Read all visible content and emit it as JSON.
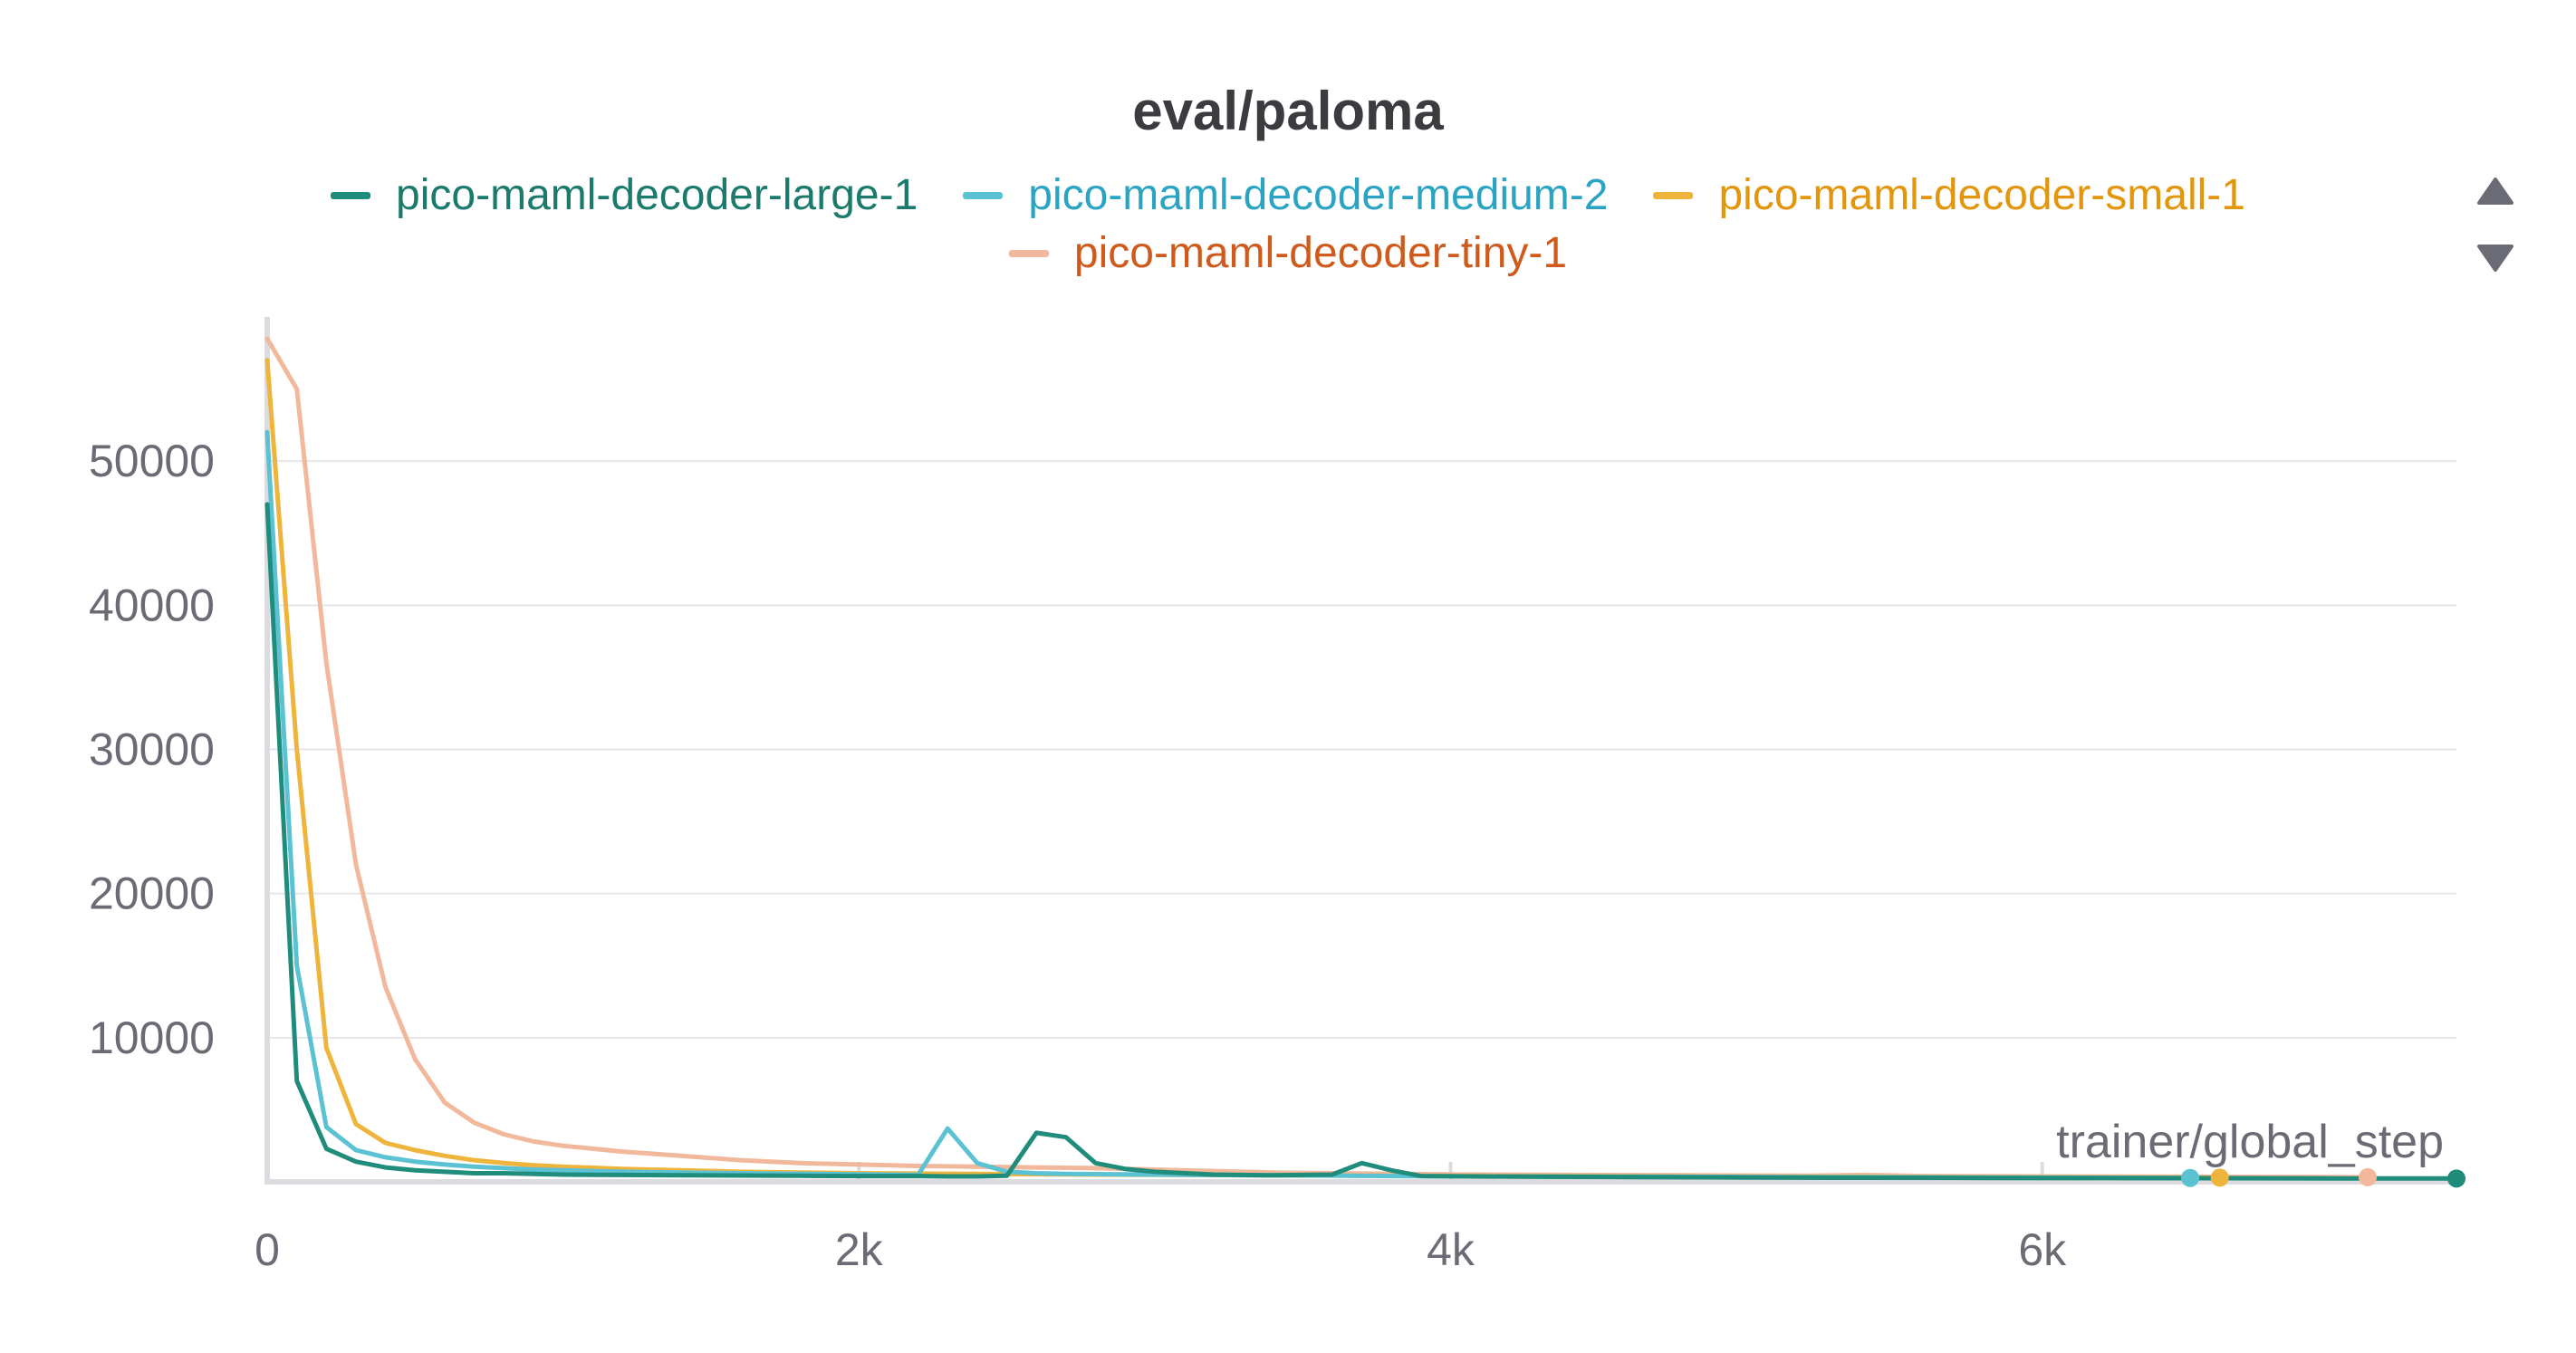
{
  "chart_data": {
    "type": "line",
    "title": "eval/paloma",
    "xlabel": "trainer/global_step",
    "ylabel": "",
    "xlim": [
      0,
      7400
    ],
    "ylim": [
      0,
      60000
    ],
    "x_ticks": [
      0,
      2000,
      4000,
      6000
    ],
    "x_tick_labels": [
      "0",
      "2k",
      "4k",
      "6k"
    ],
    "y_ticks": [
      10000,
      20000,
      30000,
      40000,
      50000
    ],
    "y_tick_labels": [
      "10000",
      "20000",
      "30000",
      "40000",
      "50000"
    ],
    "grid": true,
    "legend_position": "top",
    "series": [
      {
        "name": "pico-maml-decoder-large-1",
        "color": "#1f8c7c",
        "label_color": "#1a7a6b",
        "x": [
          0,
          100,
          200,
          300,
          400,
          500,
          600,
          700,
          800,
          900,
          1000,
          1200,
          1400,
          1600,
          1800,
          2000,
          2200,
          2300,
          2400,
          2500,
          2600,
          2700,
          2800,
          2900,
          3000,
          3200,
          3400,
          3600,
          3700,
          3800,
          3900,
          4200,
          4600,
          5000,
          5400,
          5800,
          6200,
          6600,
          7000,
          7400
        ],
        "y": [
          47000,
          7000,
          2300,
          1400,
          1000,
          800,
          700,
          600,
          600,
          550,
          500,
          480,
          460,
          440,
          420,
          400,
          400,
          380,
          380,
          420,
          3400,
          3100,
          1300,
          900,
          700,
          500,
          450,
          500,
          1300,
          800,
          400,
          360,
          330,
          300,
          280,
          270,
          260,
          250,
          240,
          230
        ]
      },
      {
        "name": "pico-maml-decoder-medium-2",
        "color": "#5bc2d4",
        "label_color": "#2aa4c2",
        "x": [
          0,
          100,
          200,
          300,
          400,
          500,
          600,
          700,
          800,
          900,
          1000,
          1200,
          1400,
          1600,
          1800,
          2000,
          2200,
          2300,
          2400,
          2500,
          2600,
          2700,
          3000,
          3400,
          3800,
          4200,
          4600,
          5000,
          5400,
          5800,
          6200,
          6500
        ],
        "y": [
          52000,
          15000,
          3800,
          2200,
          1700,
          1400,
          1200,
          1050,
          950,
          850,
          800,
          700,
          650,
          600,
          560,
          520,
          480,
          3700,
          1300,
          700,
          600,
          550,
          500,
          450,
          400,
          380,
          360,
          340,
          320,
          300,
          280,
          270
        ]
      },
      {
        "name": "pico-maml-decoder-small-1",
        "color": "#efb43c",
        "label_color": "#e3960c",
        "x": [
          0,
          100,
          200,
          300,
          400,
          500,
          600,
          700,
          800,
          900,
          1000,
          1200,
          1400,
          1600,
          1800,
          2000,
          2400,
          2800,
          3200,
          3600,
          4000,
          4400,
          4800,
          5200,
          5600,
          6000,
          6300,
          6600
        ],
        "y": [
          57000,
          30000,
          9300,
          4000,
          2700,
          2200,
          1800,
          1500,
          1300,
          1150,
          1050,
          900,
          800,
          700,
          650,
          600,
          550,
          500,
          470,
          440,
          410,
          390,
          370,
          350,
          330,
          310,
          300,
          290
        ]
      },
      {
        "name": "pico-maml-decoder-tiny-1",
        "color": "#f2b89b",
        "label_color": "#cf5a1c",
        "x": [
          0,
          100,
          200,
          300,
          400,
          500,
          600,
          700,
          800,
          900,
          1000,
          1100,
          1200,
          1400,
          1600,
          1800,
          2000,
          2200,
          2400,
          2600,
          2800,
          3000,
          3200,
          3400,
          3600,
          3800,
          4000,
          4400,
          4800,
          5200,
          5400,
          5600,
          6000,
          6400,
          6800,
          7000,
          7100
        ],
        "y": [
          58500,
          55000,
          36000,
          22000,
          13500,
          8500,
          5500,
          4100,
          3300,
          2800,
          2500,
          2300,
          2100,
          1800,
          1500,
          1300,
          1200,
          1100,
          1050,
          1000,
          950,
          850,
          750,
          650,
          600,
          560,
          520,
          480,
          450,
          420,
          480,
          400,
          380,
          360,
          340,
          330,
          320
        ]
      }
    ]
  }
}
